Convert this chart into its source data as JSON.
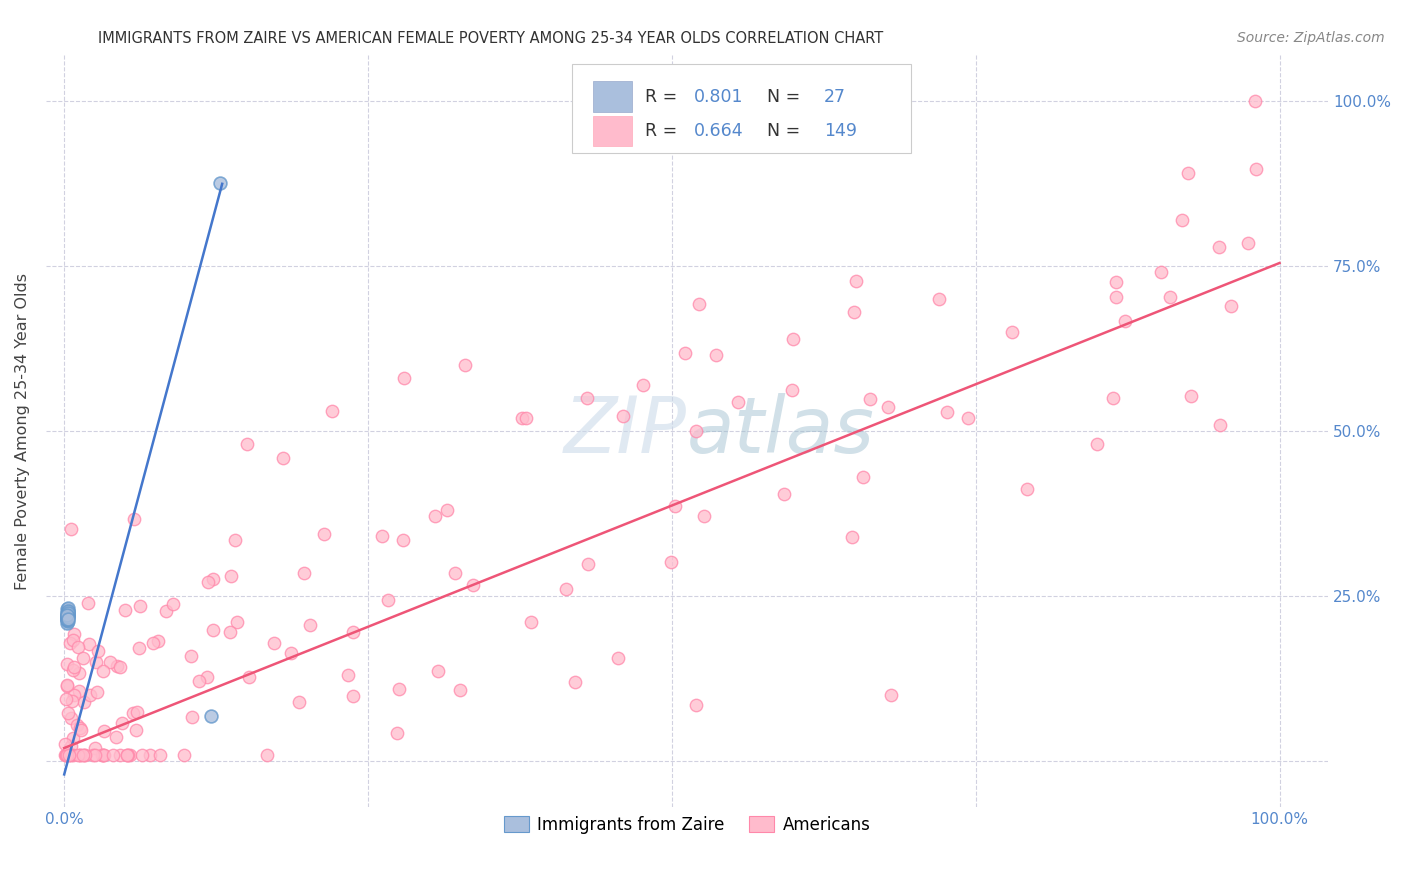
{
  "title": "IMMIGRANTS FROM ZAIRE VS AMERICAN FEMALE POVERTY AMONG 25-34 YEAR OLDS CORRELATION CHART",
  "source": "Source: ZipAtlas.com",
  "ylabel": "Female Poverty Among 25-34 Year Olds",
  "legend_r_blue": "0.801",
  "legend_n_blue": "27",
  "legend_r_pink": "0.664",
  "legend_n_pink": "149",
  "blue_fill": "#aabfdd",
  "blue_edge": "#6699cc",
  "pink_fill": "#ffbbcc",
  "pink_edge": "#ff88aa",
  "line_blue": "#4477cc",
  "line_pink": "#ee5577",
  "tick_color": "#5588cc",
  "watermark_color": "#c8d8e8",
  "grid_color": "#ccccdd",
  "title_color": "#333333",
  "source_color": "#888888",
  "ylabel_color": "#444444"
}
